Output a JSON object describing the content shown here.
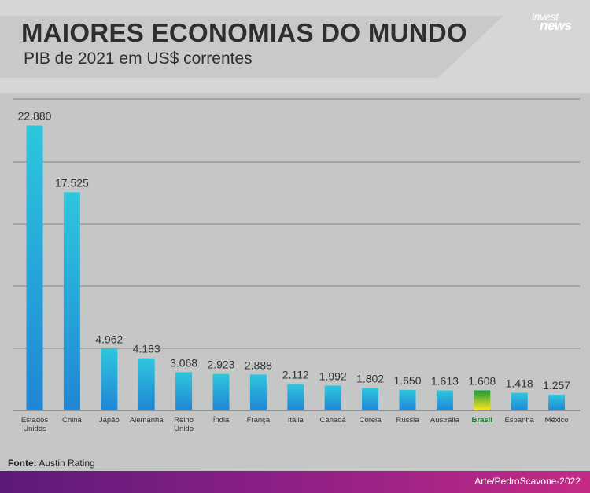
{
  "header": {
    "title": "MAIORES ECONOMIAS DO MUNDO",
    "subtitle": "PIB de 2021 em US$ correntes",
    "logo_line1": "invest",
    "logo_line2": "news"
  },
  "footer": {
    "source_label": "Fonte:",
    "source_value": "Austin Rating",
    "credit": "Arte/PedroScavone-2022"
  },
  "colors": {
    "bar_top": "#2ec6dd",
    "bar_bottom": "#1f86d6",
    "highlight_top": "#1a9a3a",
    "highlight_bottom": "#ffe81a",
    "highlight_label": "#1a7a2a",
    "value_label": "#333333",
    "gridline": "#8f9190",
    "header_background": "#d6d6d6",
    "footer_gradient_start": "#5c1a7a",
    "footer_gradient_end": "#c42a85"
  },
  "chart_data": {
    "type": "bar",
    "title": "MAIORES ECONOMIAS DO MUNDO",
    "subtitle": "PIB de 2021 em US$ correntes",
    "xlabel": "",
    "ylabel": "",
    "ylim": [
      0,
      25000
    ],
    "grid": true,
    "highlighted_category": "Brasil",
    "categories": [
      [
        "Estados",
        "Unidos"
      ],
      [
        "China"
      ],
      [
        "Japão"
      ],
      [
        "Alemanha"
      ],
      [
        "Reino",
        "Unido"
      ],
      [
        "Índia"
      ],
      [
        "França"
      ],
      [
        "Itália"
      ],
      [
        "Canadá"
      ],
      [
        "Coreia"
      ],
      [
        "Rússia"
      ],
      [
        "Austrália"
      ],
      [
        "Brasil"
      ],
      [
        "Espanha"
      ],
      [
        "México"
      ]
    ],
    "values": [
      22880,
      17525,
      4962,
      4183,
      3068,
      2923,
      2888,
      2112,
      1992,
      1802,
      1650,
      1613,
      1608,
      1418,
      1257
    ],
    "value_labels": [
      "22.880",
      "17.525",
      "4.962",
      "4.183",
      "3.068",
      "2.923",
      "2.888",
      "2.112",
      "1.992",
      "1.802",
      "1.650",
      "1.613",
      "1.608",
      "1.418",
      "1.257"
    ]
  }
}
